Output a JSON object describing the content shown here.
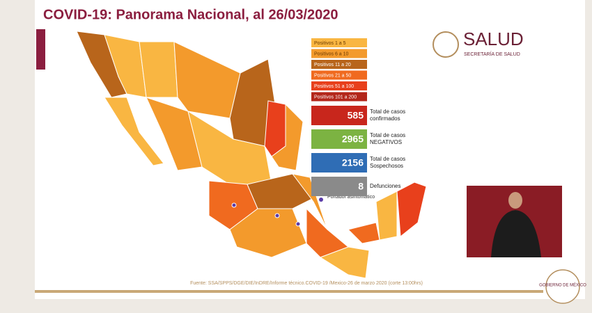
{
  "header": {
    "title": "COVID-19: Panorama Nacional, al 26/03/2020"
  },
  "legend": [
    {
      "label": "Positivos 1 a 5",
      "color": "#f9b642"
    },
    {
      "label": "Positivos 6 a 10",
      "color": "#f39a2c"
    },
    {
      "label": "Positivos 11 a 20",
      "color": "#b8651b"
    },
    {
      "label": "Positivos 21 a 50",
      "color": "#f06a1f"
    },
    {
      "label": "Positivos 51 a 100",
      "color": "#e8401c"
    },
    {
      "label": "Positivos 101 a 200",
      "color": "#b3261a"
    }
  ],
  "stats": [
    {
      "value": "585",
      "label": "Total de casos confirmados",
      "color": "#c8261c"
    },
    {
      "value": "2965",
      "label": "Total de casos NEGATIVOS",
      "color": "#7cb342"
    },
    {
      "value": "2156",
      "label": "Total de casos Sospechosos",
      "color": "#2f6db5"
    },
    {
      "value": "8",
      "label": "Defunciones",
      "color": "#8a8a8a"
    }
  ],
  "map_note": "Portador asintomático",
  "brand": {
    "name": "SALUD",
    "subtitle": "SECRETARÍA DE SALUD",
    "government": "GOBIERNO DE MÉXICO"
  },
  "footer": {
    "source": "Fuente: SSA/SPPS/DGE/DIE/InDRE/Informe técnico.COVID-19 /Mexico-26 de marzo 2020 (corte 13:00hrs)"
  }
}
